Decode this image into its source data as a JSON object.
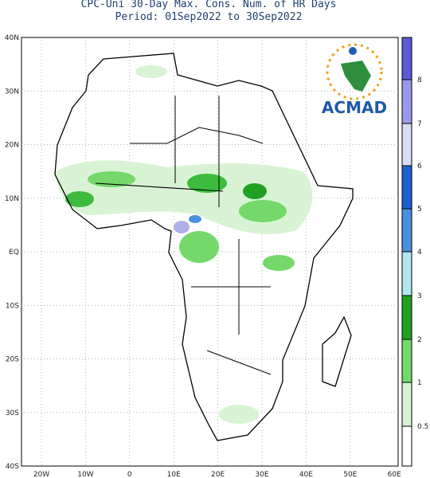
{
  "header": {
    "title_line1": "CPC-Uni 30-Day Max. Cons. Num. of HR Days",
    "title_line2": "Period: 01Sep2022 to 30Sep2022"
  },
  "map": {
    "lat_labels": [
      "40N",
      "30N",
      "20N",
      "10N",
      "EQ",
      "10S",
      "20S",
      "30S",
      "40S"
    ],
    "lon_labels": [
      "20W",
      "10W",
      "0",
      "10E",
      "20E",
      "30E",
      "40E",
      "50E",
      "60E"
    ]
  },
  "legend": {
    "labels": [
      "8",
      "7",
      "6",
      "5",
      "4",
      "3",
      "2",
      "1",
      "0.5"
    ]
  },
  "logo": {
    "text": "ACMAD"
  }
}
